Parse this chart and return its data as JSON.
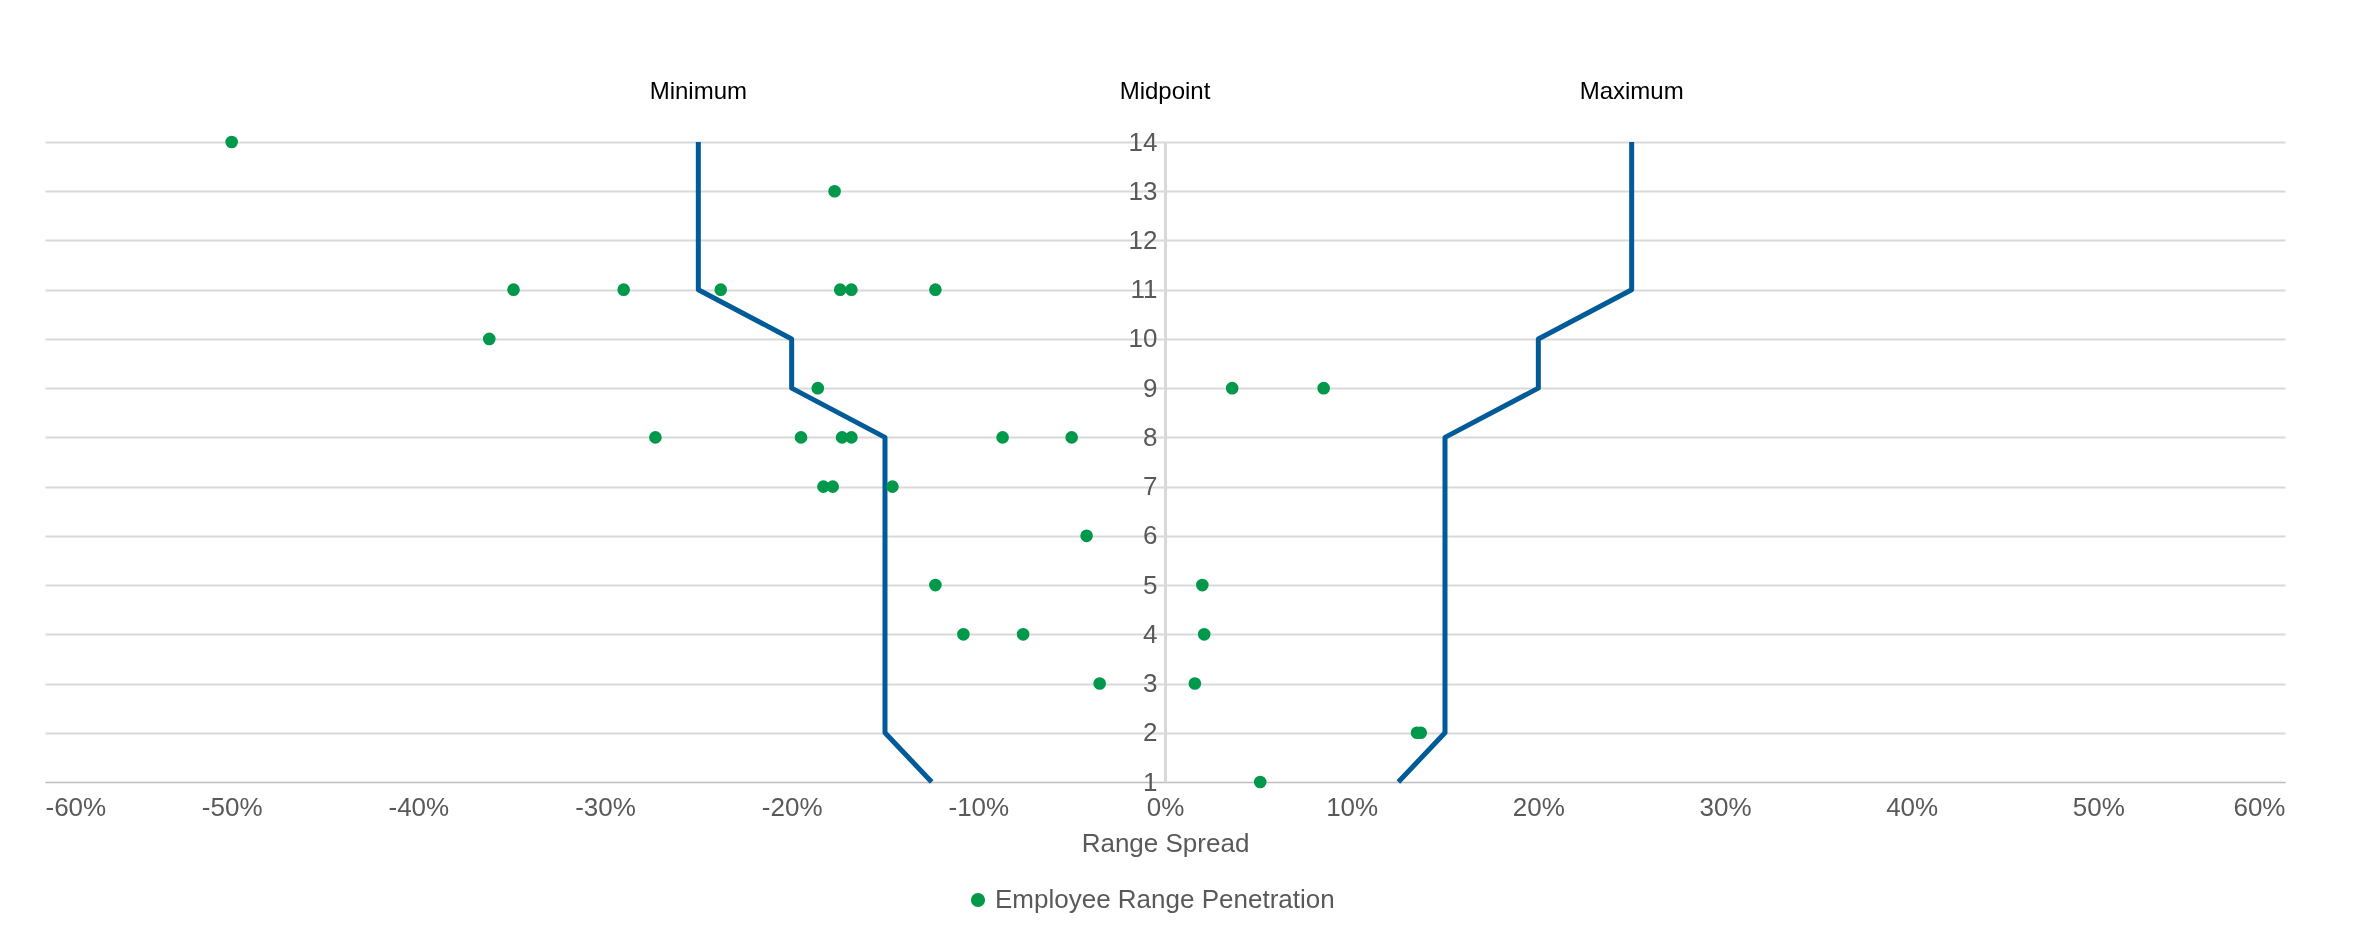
{
  "chart_data": {
    "type": "scatter",
    "xlabel": "Range Spread",
    "xlim": [
      -60,
      60
    ],
    "ylim": [
      1,
      14
    ],
    "xticks": [
      {
        "value": -60,
        "label": "-60%"
      },
      {
        "value": -50,
        "label": "-50%"
      },
      {
        "value": -40,
        "label": "-40%"
      },
      {
        "value": -30,
        "label": "-30%"
      },
      {
        "value": -20,
        "label": "-20%"
      },
      {
        "value": -10,
        "label": "-10%"
      },
      {
        "value": 0,
        "label": "0%"
      },
      {
        "value": 10,
        "label": "10%"
      },
      {
        "value": 20,
        "label": "20%"
      },
      {
        "value": 30,
        "label": "30%"
      },
      {
        "value": 40,
        "label": "40%"
      },
      {
        "value": 50,
        "label": "50%"
      },
      {
        "value": 60,
        "label": "60%"
      }
    ],
    "yticks": [
      1,
      2,
      3,
      4,
      5,
      6,
      7,
      8,
      9,
      10,
      11,
      12,
      13,
      14
    ],
    "grid": "y",
    "legend": "bottom",
    "annotations": [
      "Minimum",
      "Midpoint",
      "Maximum"
    ],
    "series": [
      {
        "name": "Employee Range Penetration",
        "marker": "circle",
        "color": "#00984a",
        "x": [
          -50.0,
          -17.7,
          -34.9,
          -29.0,
          -23.8,
          -17.4,
          -16.8,
          -12.3,
          -36.2,
          -18.6,
          3.6,
          8.5,
          -27.3,
          -19.5,
          -17.3,
          -16.8,
          -8.7,
          -5.0,
          -18.3,
          -17.8,
          -14.6,
          -4.2,
          -12.3,
          2.0,
          -10.8,
          -7.6,
          2.1,
          -3.5,
          1.6,
          13.5,
          13.7,
          5.1
        ],
        "values": [
          14,
          13,
          11,
          11,
          11,
          11,
          11,
          11,
          10,
          9,
          9,
          9,
          8,
          8,
          8,
          8,
          8,
          8,
          7,
          7,
          7,
          6,
          5,
          5,
          4,
          4,
          4,
          3,
          3,
          2,
          2,
          1
        ]
      },
      {
        "type": "line",
        "marker": "none",
        "color": "#005b99",
        "x": [
          -12.5,
          -15,
          -15,
          -20,
          -20,
          -25,
          -25
        ],
        "values": [
          1,
          2,
          8,
          9,
          10,
          11,
          14
        ]
      },
      {
        "type": "line",
        "marker": "none",
        "color": "#005b99",
        "x": [
          12.5,
          15,
          15,
          20,
          20,
          25,
          25
        ],
        "values": [
          1,
          2,
          8,
          9,
          10,
          11,
          14
        ]
      }
    ]
  }
}
